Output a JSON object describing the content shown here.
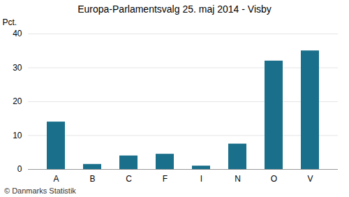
{
  "chart_data": {
    "type": "bar",
    "title": "Europa-Parlamentsvalg 25. maj 2014 - Visby",
    "categories": [
      "A",
      "B",
      "C",
      "F",
      "I",
      "N",
      "O",
      "V"
    ],
    "values": [
      14.0,
      1.5,
      4.0,
      4.5,
      1.0,
      7.5,
      32.0,
      35.0
    ],
    "color": "#1a6f8a",
    "ylabel": "Pct.",
    "ylim": [
      0,
      40
    ],
    "yticks": [
      0,
      10,
      20,
      30,
      40
    ],
    "grid": true,
    "caption": "© Danmarks Statistik"
  }
}
